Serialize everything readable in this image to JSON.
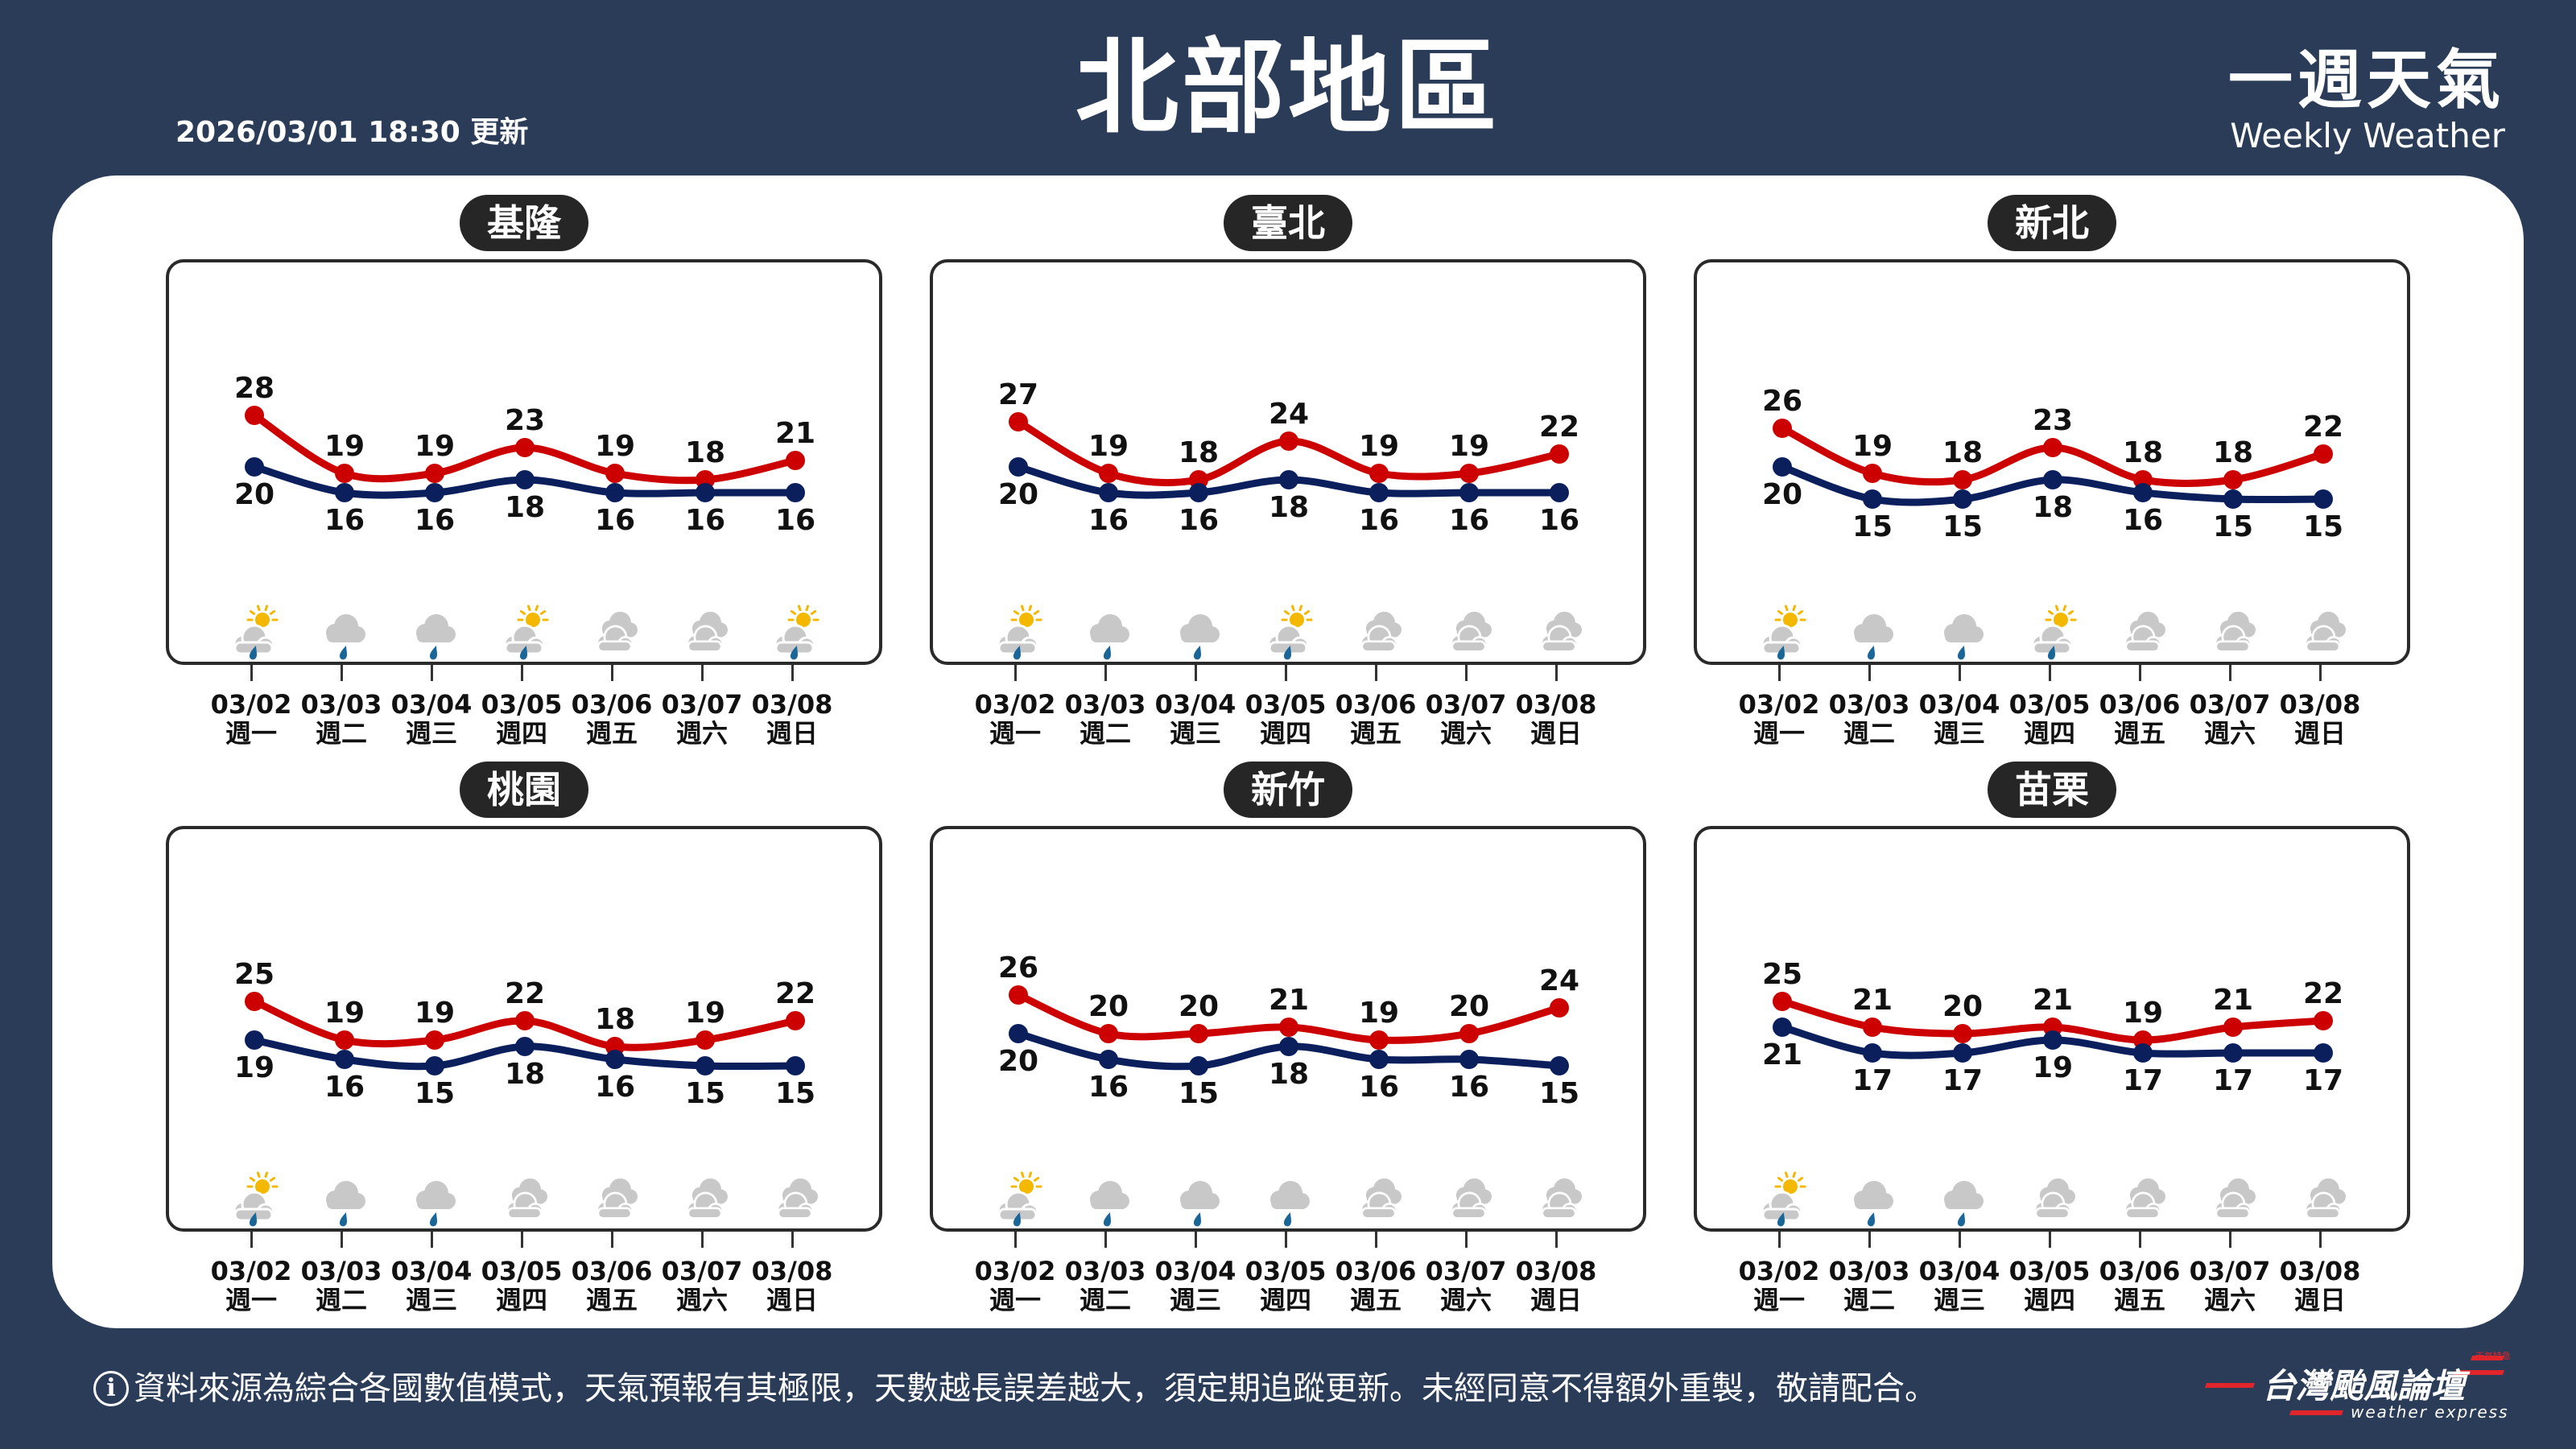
{
  "header": {
    "title": "北部地區",
    "updated": "2026/03/01 18:30 更新",
    "brand_zh": "一週天氣",
    "brand_en": "Weekly Weather"
  },
  "colors": {
    "background": "#2a3c57",
    "high": "#cc0000",
    "low": "#0a1f5c",
    "rain": "#1a6699",
    "sun": "#f5b800",
    "cloud": "#c8c8c8"
  },
  "days": [
    {
      "date": "03/02",
      "weekday": "週一"
    },
    {
      "date": "03/03",
      "weekday": "週二"
    },
    {
      "date": "03/04",
      "weekday": "週三"
    },
    {
      "date": "03/05",
      "weekday": "週四"
    },
    {
      "date": "03/06",
      "weekday": "週五"
    },
    {
      "date": "03/07",
      "weekday": "週六"
    },
    {
      "date": "03/08",
      "weekday": "週日"
    }
  ],
  "regions": [
    {
      "name": "基隆",
      "high": [
        28,
        19,
        19,
        23,
        19,
        18,
        21
      ],
      "low": [
        20,
        16,
        16,
        18,
        16,
        16,
        16
      ],
      "icons": [
        "partly-sunny-rain",
        "rain",
        "rain",
        "partly-sunny-rain",
        "cloudy",
        "cloudy",
        "partly-sunny-rain"
      ]
    },
    {
      "name": "臺北",
      "high": [
        27,
        19,
        18,
        24,
        19,
        19,
        22
      ],
      "low": [
        20,
        16,
        16,
        18,
        16,
        16,
        16
      ],
      "icons": [
        "partly-sunny-rain",
        "rain",
        "rain",
        "partly-sunny-rain",
        "cloudy",
        "cloudy",
        "cloudy"
      ]
    },
    {
      "name": "新北",
      "high": [
        26,
        19,
        18,
        23,
        18,
        18,
        22
      ],
      "low": [
        20,
        15,
        15,
        18,
        16,
        15,
        15
      ],
      "icons": [
        "partly-sunny-rain",
        "rain",
        "rain",
        "partly-sunny-rain",
        "cloudy",
        "cloudy",
        "cloudy"
      ]
    },
    {
      "name": "桃園",
      "high": [
        25,
        19,
        19,
        22,
        18,
        19,
        22
      ],
      "low": [
        19,
        16,
        15,
        18,
        16,
        15,
        15
      ],
      "icons": [
        "partly-sunny-rain",
        "rain",
        "rain",
        "cloudy",
        "cloudy",
        "cloudy",
        "cloudy"
      ]
    },
    {
      "name": "新竹",
      "high": [
        26,
        20,
        20,
        21,
        19,
        20,
        24
      ],
      "low": [
        20,
        16,
        15,
        18,
        16,
        16,
        15
      ],
      "icons": [
        "partly-sunny-rain",
        "rain",
        "rain",
        "rain",
        "cloudy",
        "cloudy",
        "cloudy"
      ]
    },
    {
      "name": "苗栗",
      "high": [
        25,
        21,
        20,
        21,
        19,
        21,
        22
      ],
      "low": [
        21,
        17,
        17,
        19,
        17,
        17,
        17
      ],
      "icons": [
        "partly-sunny-rain",
        "rain",
        "rain",
        "cloudy",
        "cloudy",
        "cloudy",
        "cloudy"
      ]
    }
  ],
  "footer": {
    "notice": "資料來源為綜合各國數值模式，天氣預報有其極限，天數越長誤差越大，須定期追蹤更新。未經同意不得額外重製，敬請配合。",
    "info_icon": "i",
    "logo_zh": "台灣颱風論壇",
    "logo_en": "weather express",
    "logo_small": "天氣特急"
  }
}
